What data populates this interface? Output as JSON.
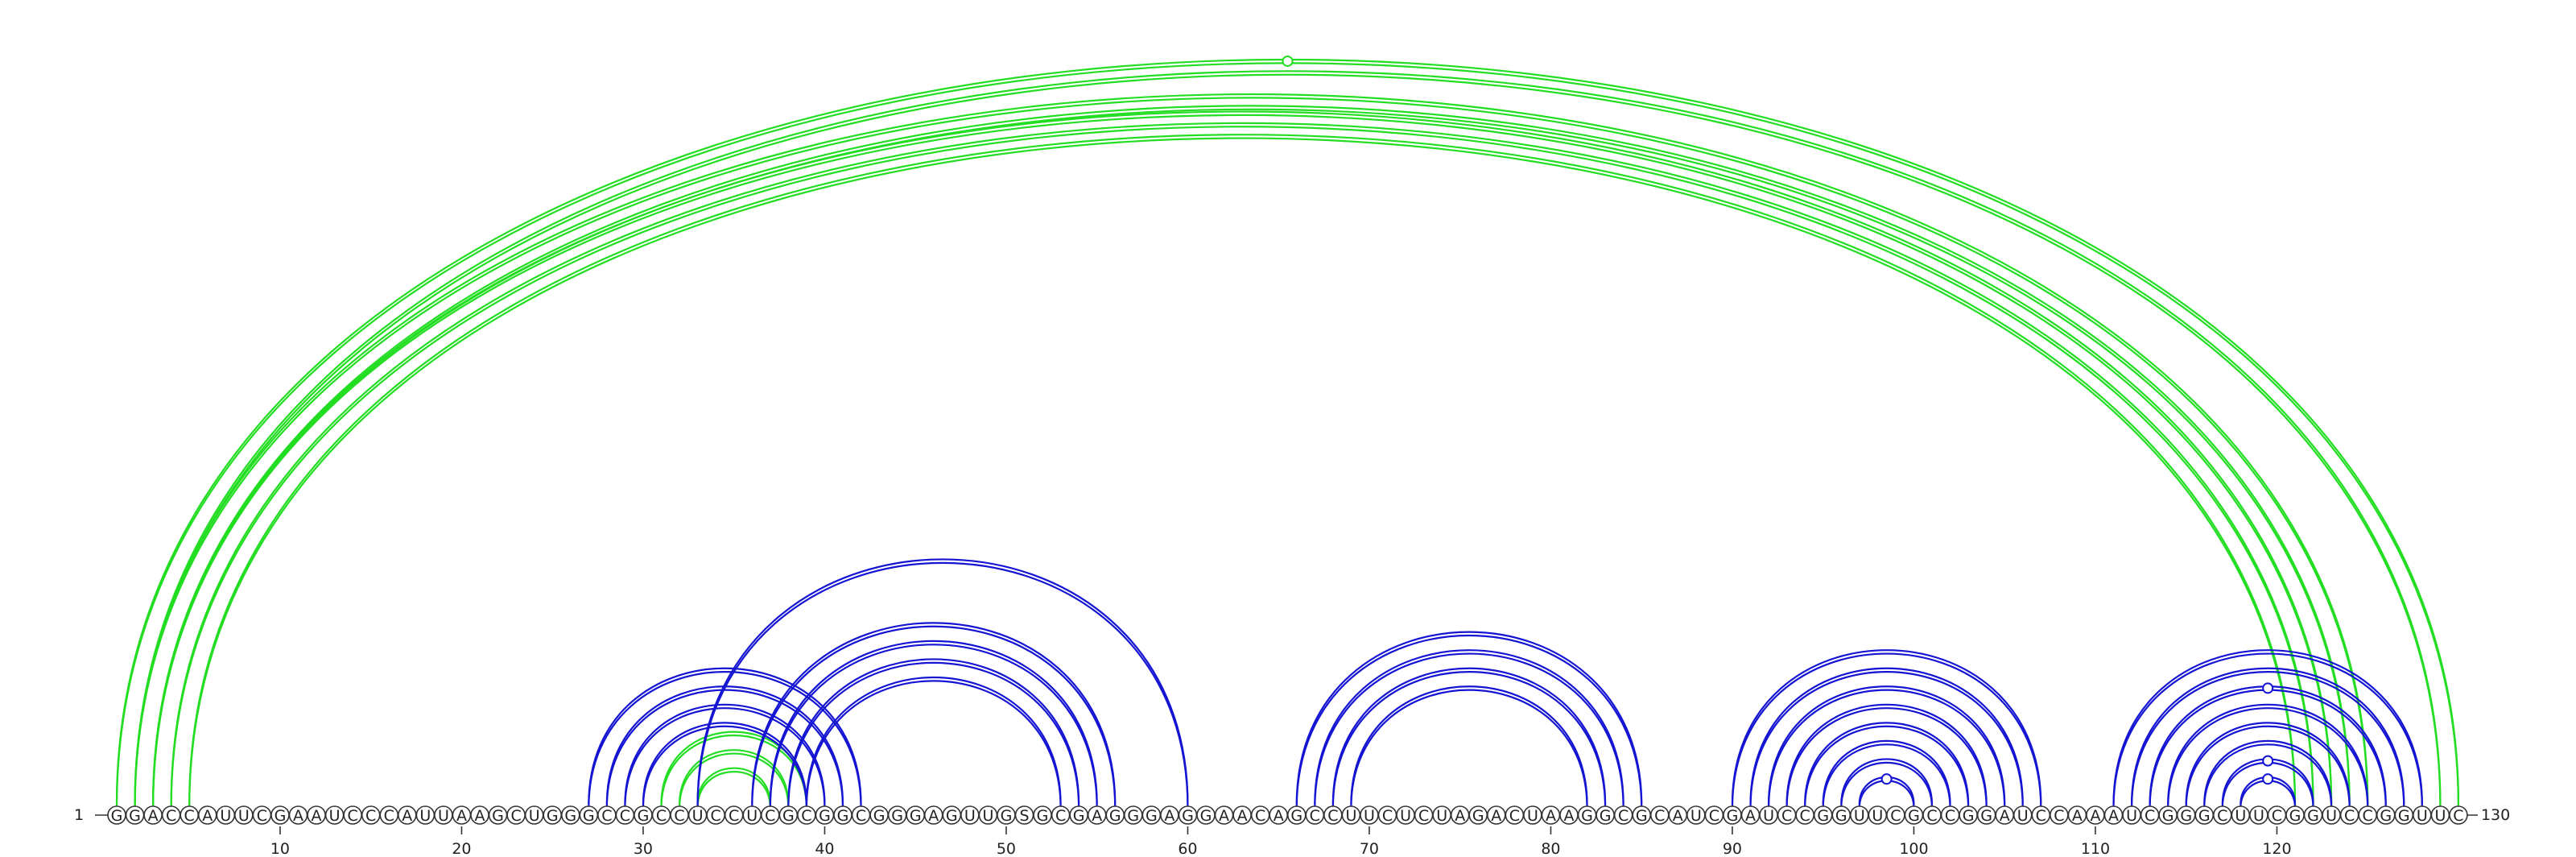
{
  "sequence": "GGACCAUUCGAAUCCCAUUAAGCUGGGCCGCCUCCUCGCGGCGGGAGUUGSGCGAGGGAGGAACAGCCUUCUCUAGACUAAGGCGCAUCGAUCCGGUUCGCCGGAUCCAAAUCGGGCUUCGGUCCGGUUC",
  "start_label": "1",
  "end_label": "130",
  "position_ticks": [
    "10",
    "20",
    "30",
    "40",
    "50",
    "60",
    "70",
    "80",
    "90",
    "100",
    "110",
    "120"
  ],
  "colors": {
    "green_arcs": "#22dd22",
    "blue_arcs": "#1414d2",
    "base_outline": "#333333"
  },
  "arcs": {
    "green": [
      {
        "i": 1,
        "j": 130
      },
      {
        "i": 2,
        "j": 129
      },
      {
        "i": 2,
        "j": 125
      },
      {
        "i": 3,
        "j": 124
      },
      {
        "i": 3,
        "j": 123
      },
      {
        "i": 4,
        "j": 122
      },
      {
        "i": 5,
        "j": 121
      },
      {
        "i": 31,
        "j": 39
      },
      {
        "i": 32,
        "j": 38
      },
      {
        "i": 33,
        "j": 37
      }
    ],
    "blue": [
      {
        "i": 27,
        "j": 42
      },
      {
        "i": 28,
        "j": 41
      },
      {
        "i": 29,
        "j": 40
      },
      {
        "i": 30,
        "j": 39
      },
      {
        "i": 33,
        "j": 60
      },
      {
        "i": 36,
        "j": 56
      },
      {
        "i": 37,
        "j": 55
      },
      {
        "i": 38,
        "j": 54
      },
      {
        "i": 39,
        "j": 53
      },
      {
        "i": 66,
        "j": 85
      },
      {
        "i": 67,
        "j": 84
      },
      {
        "i": 68,
        "j": 83
      },
      {
        "i": 69,
        "j": 82
      },
      {
        "i": 90,
        "j": 107
      },
      {
        "i": 91,
        "j": 106
      },
      {
        "i": 92,
        "j": 105
      },
      {
        "i": 93,
        "j": 104
      },
      {
        "i": 94,
        "j": 103
      },
      {
        "i": 95,
        "j": 102
      },
      {
        "i": 96,
        "j": 101
      },
      {
        "i": 97,
        "j": 100
      },
      {
        "i": 111,
        "j": 128
      },
      {
        "i": 112,
        "j": 127
      },
      {
        "i": 113,
        "j": 126
      },
      {
        "i": 114,
        "j": 125
      },
      {
        "i": 115,
        "j": 124
      },
      {
        "i": 116,
        "j": 123
      },
      {
        "i": 117,
        "j": 122
      },
      {
        "i": 118,
        "j": 121
      }
    ]
  },
  "noncanonical_markers": {
    "green": [
      {
        "i": 1,
        "j": 130
      }
    ],
    "blue": [
      {
        "i": 113,
        "j": 126
      },
      {
        "i": 117,
        "j": 122
      },
      {
        "i": 118,
        "j": 121
      },
      {
        "i": 97,
        "j": 100
      }
    ]
  }
}
